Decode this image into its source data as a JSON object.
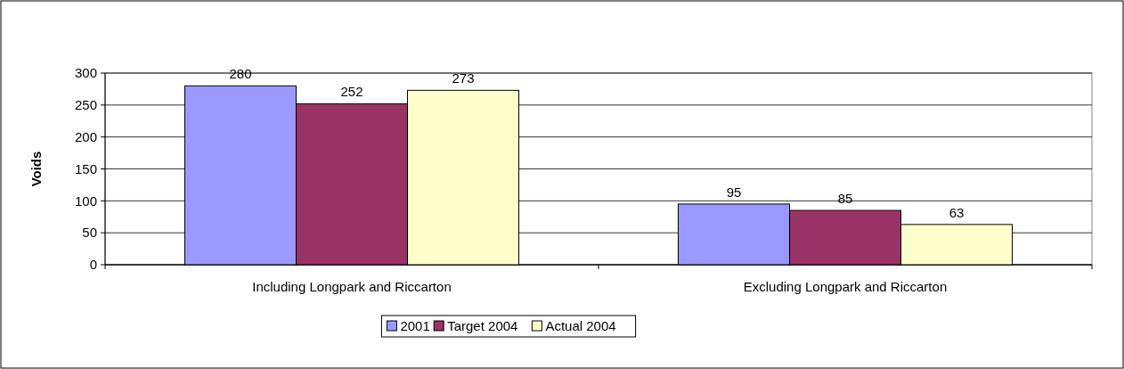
{
  "chart_data": {
    "type": "bar",
    "ylabel": "Voids",
    "categories": [
      "Including Longpark and Riccarton",
      "Excluding Longpark and Riccarton"
    ],
    "series": [
      {
        "name": "2001",
        "color": "#9999ff",
        "values": [
          280,
          95
        ]
      },
      {
        "name": "Target 2004",
        "color": "#993366",
        "values": [
          252,
          85
        ]
      },
      {
        "name": "Actual 2004",
        "color": "#ffffcc",
        "values": [
          273,
          63
        ]
      }
    ],
    "ylim": [
      0,
      300
    ],
    "yticks": [
      0,
      50,
      100,
      150,
      200,
      250,
      300
    ],
    "grid": "y",
    "legend": "bottom",
    "data_labels": true
  }
}
